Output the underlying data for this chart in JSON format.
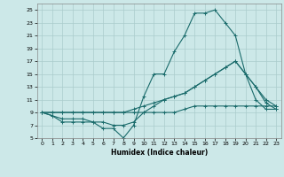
{
  "title": "",
  "xlabel": "Humidex (Indice chaleur)",
  "xlim": [
    -0.5,
    23.5
  ],
  "ylim": [
    5,
    26
  ],
  "xticks": [
    0,
    1,
    2,
    3,
    4,
    5,
    6,
    7,
    8,
    9,
    10,
    11,
    12,
    13,
    14,
    15,
    16,
    17,
    18,
    19,
    20,
    21,
    22,
    23
  ],
  "yticks": [
    5,
    7,
    9,
    11,
    13,
    15,
    17,
    19,
    21,
    23,
    25
  ],
  "background_color": "#cce8e8",
  "grid_color": "#aacccc",
  "line_color": "#1a6b6b",
  "lines": [
    {
      "x": [
        0,
        1,
        2,
        3,
        4,
        5,
        6,
        7,
        8,
        9,
        10,
        11,
        12,
        13,
        14,
        15,
        16,
        17,
        18,
        19,
        20,
        21,
        22,
        23
      ],
      "y": [
        9,
        8.5,
        8,
        8,
        8,
        7.5,
        6.5,
        6.5,
        5,
        7,
        11.5,
        15,
        15,
        18.5,
        21,
        24.5,
        24.5,
        25,
        23,
        21,
        15,
        11,
        9.5,
        9.5
      ]
    },
    {
      "x": [
        0,
        1,
        2,
        3,
        4,
        5,
        6,
        7,
        8,
        9,
        10,
        11,
        12,
        13,
        14,
        15,
        16,
        17,
        18,
        19,
        20,
        21,
        22,
        23
      ],
      "y": [
        9,
        8.5,
        7.5,
        7.5,
        7.5,
        7.5,
        7.5,
        7,
        7,
        7.5,
        9,
        10,
        11,
        11.5,
        12,
        13,
        14,
        15,
        16,
        17,
        15,
        13,
        11,
        10
      ]
    },
    {
      "x": [
        0,
        1,
        2,
        3,
        4,
        5,
        6,
        7,
        8,
        9,
        10,
        11,
        12,
        13,
        14,
        15,
        16,
        17,
        18,
        19,
        20,
        21,
        22,
        23
      ],
      "y": [
        9,
        9,
        9,
        9,
        9,
        9,
        9,
        9,
        9,
        9,
        9,
        9,
        9,
        9,
        9.5,
        10,
        10,
        10,
        10,
        10,
        10,
        10,
        10,
        10
      ]
    },
    {
      "x": [
        0,
        1,
        2,
        3,
        4,
        5,
        6,
        7,
        8,
        9,
        10,
        11,
        12,
        13,
        14,
        15,
        16,
        17,
        18,
        19,
        20,
        21,
        22,
        23
      ],
      "y": [
        9,
        9,
        9,
        9,
        9,
        9,
        9,
        9,
        9,
        9.5,
        10,
        10.5,
        11,
        11.5,
        12,
        13,
        14,
        15,
        16,
        17,
        15,
        13,
        10.5,
        9.5
      ]
    }
  ]
}
